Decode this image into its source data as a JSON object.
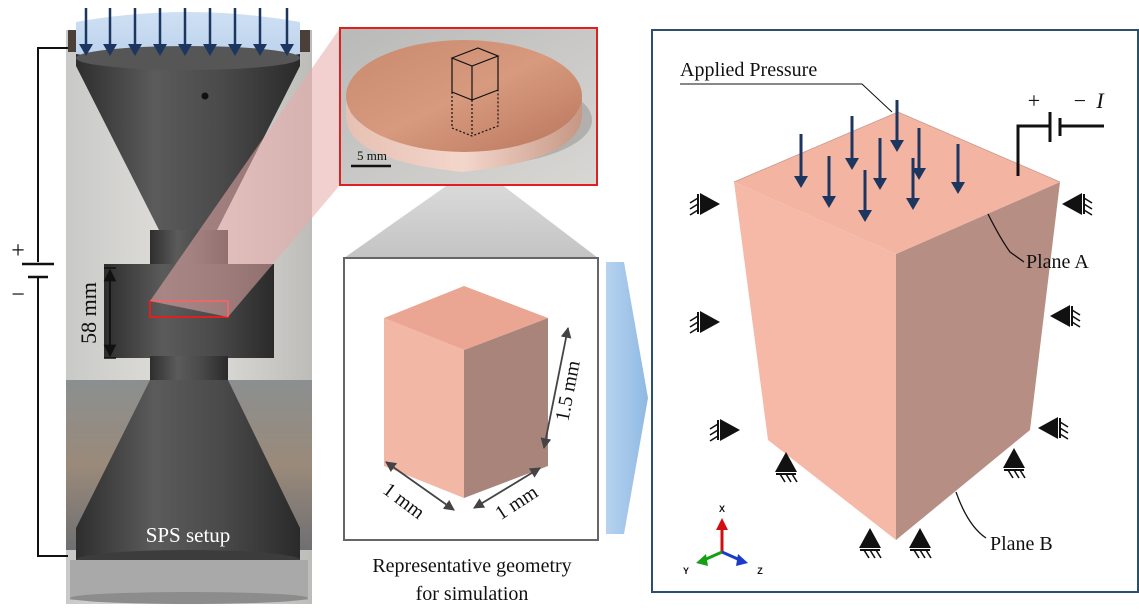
{
  "left_panel": {
    "caption": "SPS setup",
    "height_label": "58 mm",
    "plus": "+",
    "minus": "−"
  },
  "sample_photo": {
    "scale_label": "5 mm"
  },
  "geometry_panel": {
    "height_label": "1.5 mm",
    "width_label_left": "1 mm",
    "width_label_right": "1 mm",
    "caption_line1": "Representative geometry",
    "caption_line2": "for simulation"
  },
  "model_panel": {
    "pressure_label": "Applied Pressure",
    "plane_a_label": "Plane A",
    "plane_b_label": "Plane B",
    "plus": "+",
    "minus": "−",
    "current_symbol": "I",
    "axis_x": "X",
    "axis_y": "Y",
    "axis_z": "Z"
  },
  "colors": {
    "graphite": "#454545",
    "copper_face": "#f5b8a6",
    "copper_side": "#b88f84",
    "copper_top": "#eaa593",
    "arrow_navy": "#1d3660",
    "frame_blue": "#2e4e6e",
    "highlight_red": "#e02020",
    "flow_blue": "#9cc3e6"
  }
}
